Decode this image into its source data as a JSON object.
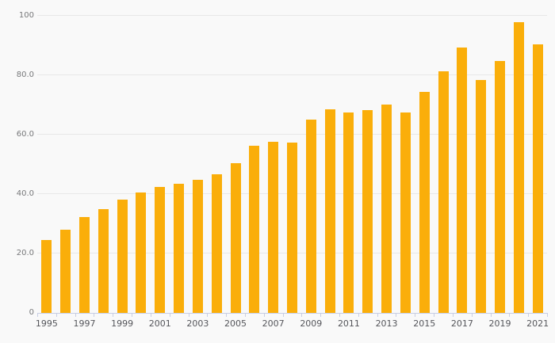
{
  "chart_data": {
    "type": "bar",
    "title": "",
    "xlabel": "",
    "ylabel": "",
    "x": [
      1995,
      1996,
      1997,
      1998,
      1999,
      2000,
      2001,
      2002,
      2003,
      2004,
      2005,
      2006,
      2007,
      2008,
      2009,
      2010,
      2011,
      2012,
      2013,
      2014,
      2015,
      2016,
      2017,
      2018,
      2019,
      2020,
      2021
    ],
    "values": [
      24.5,
      28.1,
      32.4,
      34.9,
      38.1,
      40.5,
      42.4,
      43.6,
      44.7,
      46.6,
      50.4,
      56.2,
      57.7,
      57.3,
      65.0,
      68.5,
      67.4,
      68.4,
      70.1,
      67.6,
      74.3,
      81.3,
      89.3,
      78.4,
      84.8,
      97.9,
      90.5
    ],
    "ylim": [
      0,
      100
    ],
    "y_ticks": [
      {
        "value": 0,
        "label": "0"
      },
      {
        "value": 20,
        "label": "20.0"
      },
      {
        "value": 40,
        "label": "40.0"
      },
      {
        "value": 60,
        "label": "60.0"
      },
      {
        "value": 80,
        "label": "80.0"
      },
      {
        "value": 100,
        "label": "100"
      }
    ],
    "x_tick_labels": [
      "1995",
      "1997",
      "1999",
      "2001",
      "2003",
      "2005",
      "2007",
      "2009",
      "2011",
      "2013",
      "2015",
      "2017",
      "2019",
      "2021"
    ],
    "grid": "horizontal-only",
    "legend": "none",
    "colors": {
      "bar": "#FAAE0A",
      "background": "#F9F9F9",
      "gridline": "#E8E8E8",
      "axis_line": "#C8CEE4",
      "y_label_text": "#77787A",
      "x_label_text": "#54555A"
    }
  }
}
